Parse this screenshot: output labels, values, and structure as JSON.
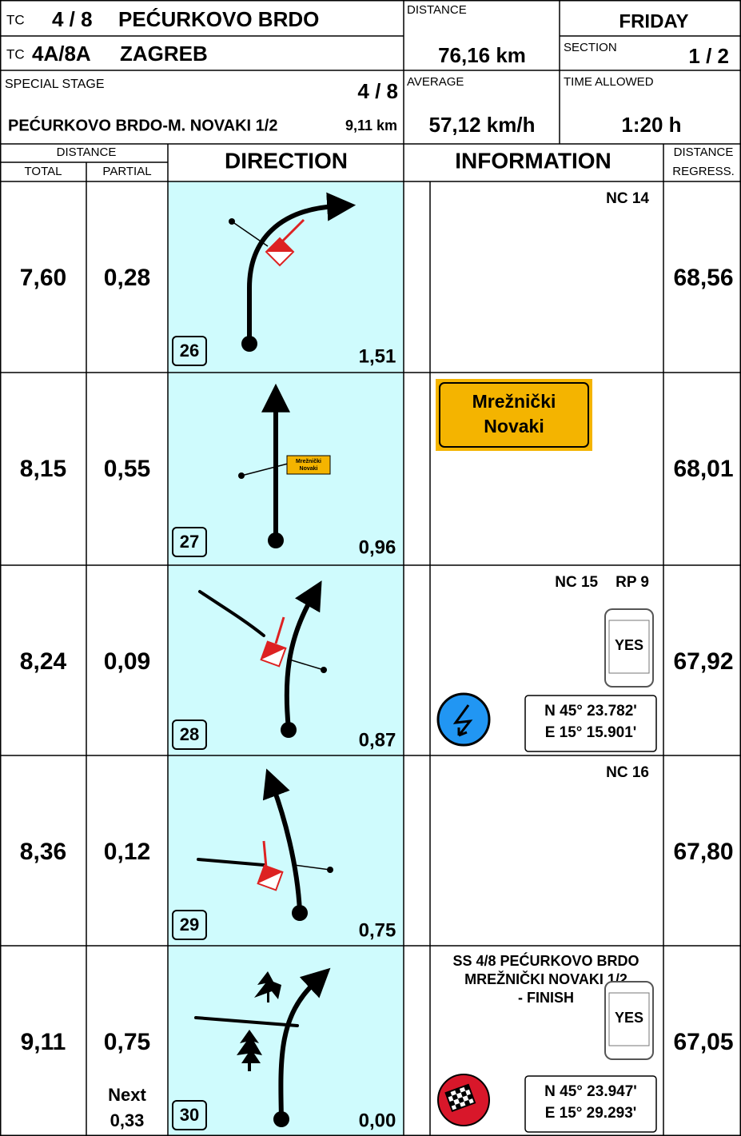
{
  "header": {
    "tc1_label": "TC",
    "tc1_number": "4 / 8",
    "tc1_name": "PEĆURKOVO BRDO",
    "tc2_label": "TC",
    "tc2_number": "4A/8A",
    "tc2_name": "ZAGREB",
    "special_stage_label": "SPECIAL STAGE",
    "special_stage_number": "4 / 8",
    "stage_name": "PEĆURKOVO BRDO-M. NOVAKI 1/2",
    "stage_length": "9,11 km",
    "distance_label": "DISTANCE",
    "distance": "76,16 km",
    "average_label": "AVERAGE",
    "average": "57,12 km/h",
    "day": "FRIDAY",
    "section_label": "SECTION",
    "section": "1 / 2",
    "time_allowed_label": "TIME ALLOWED",
    "time_allowed": "1:20 h"
  },
  "columns": {
    "distance": "DISTANCE",
    "total": "TOTAL",
    "partial": "PARTIAL",
    "direction": "DIRECTION",
    "information": "INFORMATION",
    "regress": [
      "DISTANCE",
      "REGRESS."
    ]
  },
  "rows": [
    {
      "total": "7,60",
      "partial": "0,28",
      "number": "26",
      "next_distance": "1,51",
      "regress": "68,56",
      "info_top": [
        "NC 14"
      ]
    },
    {
      "total": "8,15",
      "partial": "0,55",
      "number": "27",
      "next_distance": "0,96",
      "regress": "68,01",
      "sign": [
        "Mrežnički",
        "Novaki"
      ]
    },
    {
      "total": "8,24",
      "partial": "0,09",
      "number": "28",
      "next_distance": "0,87",
      "regress": "67,92",
      "info_top": [
        "NC 15",
        "RP 9"
      ],
      "phone": "YES",
      "coordinates": [
        "N 45° 23.782'",
        "E 15° 15.901'"
      ]
    },
    {
      "total": "8,36",
      "partial": "0,12",
      "number": "29",
      "next_distance": "0,75",
      "regress": "67,80",
      "info_top": [
        "NC 16"
      ]
    },
    {
      "total": "9,11",
      "partial": "0,75",
      "next": [
        "Next",
        "0,33"
      ],
      "number": "30",
      "next_distance": "0,00",
      "regress": "67,05",
      "info_lines": [
        "SS 4/8 PEĆURKOVO BRDO",
        "MREŽNIČKI NOVAKI 1/2",
        "- FINISH"
      ],
      "phone": "YES",
      "coordinates": [
        "N 45° 23.947'",
        "E 15° 29.293'"
      ]
    }
  ]
}
